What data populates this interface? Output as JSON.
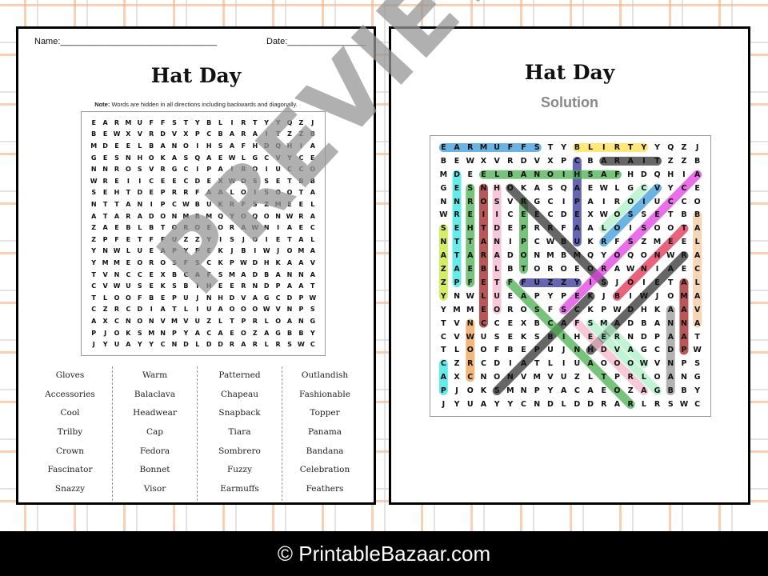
{
  "worksheet": {
    "name_label": "Name:________________________________",
    "date_label": "Date:________________",
    "title": "Hat Day",
    "note_bold": "Note:",
    "note_text": " Words are hidden in all directions including backwards and diagonally."
  },
  "solution": {
    "title": "Hat Day",
    "subtitle": "Solution"
  },
  "grid_rows": [
    "EARMUFFSTYBLIRTYYQZJ",
    "BEWXVRDVXPCBARAITZZB",
    "MDEELBANOIHSAFHDQHIA",
    "GESNHOKASQAEWLGCVYCE",
    "NNROSVRGCIPAIROIUCCO",
    "WREIICEECDEXWOSSETBB",
    "SEHTDEPRRFAALOISOOTA",
    "NTTANIPCWBUKRFSZMEEL",
    "ATARADONMBMQYOQONWRA",
    "ZAEBLBTOROEORAWNIAEC",
    "ZPFETFFUZZYISJOIETAL",
    "YNWLUEAPYPEKJBIWJOMA",
    "YMMEOROSFSCKPWDHKAAV",
    "TVNCCEXBCAFSMADBANNA",
    "CVWUSEKSBIHEERNDPAAT",
    "TLOOFBEPUJNHDVAGCDPW",
    "CZRCDIATLIUAOOOWVNPS",
    "AXCNONVMVUZLTPRLOANG",
    "PJOKSMNPYACAEOZAGBBY",
    "JYUAYYCNDLDDRARLRSWC"
  ],
  "word_columns": [
    [
      "Gloves",
      "Accessories",
      "Cool",
      "Trilby",
      "Crown",
      "Fascinator",
      "Snazzy"
    ],
    [
      "Warm",
      "Balaclava",
      "Headwear",
      "Cap",
      "Fedora",
      "Bonnet",
      "Visor"
    ],
    [
      "Patterned",
      "Chapeau",
      "Snapback",
      "Tiara",
      "Sombrero",
      "Fuzzy",
      "Earmuffs"
    ],
    [
      "Outlandish",
      "Fashionable",
      "Topper",
      "Panama",
      "Bandana",
      "Celebration",
      "Feathers"
    ]
  ],
  "solution_highlights": [
    {
      "word": "Earmuffs",
      "from": [
        0,
        0
      ],
      "to": [
        0,
        7
      ],
      "color": "#3a9ad9"
    },
    {
      "word": "Trilby",
      "from": [
        0,
        10
      ],
      "to": [
        0,
        15
      ],
      "color": "#ffe14d"
    },
    {
      "word": "Chapeau",
      "from": [
        1,
        10
      ],
      "to": [
        7,
        10
      ],
      "color": "#333399"
    },
    {
      "word": "Tiara",
      "from": [
        1,
        12
      ],
      "to": [
        1,
        16
      ],
      "color": "#333333"
    },
    {
      "word": "Fashionable",
      "from": [
        2,
        3
      ],
      "to": [
        2,
        13
      ],
      "color": "#4caf50"
    },
    {
      "word": "Patterned",
      "from": [
        2,
        1
      ],
      "to": [
        10,
        1
      ],
      "color": "#33e5e5"
    },
    {
      "word": "Feathers",
      "from": [
        3,
        2
      ],
      "to": [
        10,
        2
      ],
      "color": "#4caf50"
    },
    {
      "word": "Celebration",
      "from": [
        3,
        3
      ],
      "to": [
        13,
        3
      ],
      "color": "#a02020"
    },
    {
      "word": "Outlandish",
      "from": [
        3,
        4
      ],
      "to": [
        12,
        4
      ],
      "color": "#f5b8cc"
    },
    {
      "word": "Snazzy",
      "from": [
        6,
        0
      ],
      "to": [
        11,
        0
      ],
      "color": "#c8e632"
    },
    {
      "word": "Topper",
      "from": [
        4,
        6
      ],
      "to": [
        9,
        6
      ],
      "color": "#4caf50"
    },
    {
      "word": "Fuzzy",
      "from": [
        10,
        6
      ],
      "to": [
        10,
        10
      ],
      "color": "#333399"
    },
    {
      "word": "Sombrero",
      "from": [
        10,
        12
      ],
      "to": [
        3,
        5
      ],
      "color": "#333333"
    },
    {
      "word": "Accessories",
      "from": [
        2,
        19
      ],
      "to": [
        12,
        9
      ],
      "color": "#e040e0"
    },
    {
      "word": "Cool",
      "from": [
        3,
        15
      ],
      "to": [
        6,
        12
      ],
      "color": "#b0f0c8"
    },
    {
      "word": "Visor",
      "from": [
        3,
        16
      ],
      "to": [
        7,
        12
      ],
      "color": "#3a9ad9"
    },
    {
      "word": "Bonnet",
      "from": [
        11,
        13
      ],
      "to": [
        6,
        18
      ],
      "color": "#e03050"
    },
    {
      "word": "Headwear",
      "from": [
        15,
        11
      ],
      "to": [
        8,
        18
      ],
      "color": "#333333"
    },
    {
      "word": "Snapback",
      "from": [
        18,
        4
      ],
      "to": [
        11,
        11
      ],
      "color": "#333333"
    },
    {
      "word": "Fascinator",
      "from": [
        10,
        5
      ],
      "to": [
        19,
        14
      ],
      "color": "#4caf50"
    },
    {
      "word": "Fedora",
      "from": [
        13,
        10
      ],
      "to": [
        18,
        15
      ],
      "color": "#f5b8cc"
    },
    {
      "word": "Gloves",
      "from": [
        18,
        16
      ],
      "to": [
        13,
        11
      ],
      "color": "#b0f0c8"
    },
    {
      "word": "Warm",
      "from": [
        16,
        15
      ],
      "to": [
        13,
        12
      ],
      "color": "#b0f0c8"
    },
    {
      "word": "Crown",
      "from": [
        17,
        2
      ],
      "to": [
        13,
        2
      ],
      "color": "#f0a050"
    },
    {
      "word": "Cap",
      "from": [
        16,
        0
      ],
      "to": [
        18,
        0
      ],
      "color": "#33e5e5"
    },
    {
      "word": "Bandana",
      "from": [
        18,
        17
      ],
      "to": [
        12,
        17
      ],
      "color": "#999999"
    },
    {
      "word": "Panama",
      "from": [
        15,
        18
      ],
      "to": [
        10,
        18
      ],
      "color": "#a02020"
    },
    {
      "word": "Balaclava",
      "from": [
        5,
        19
      ],
      "to": [
        13,
        19
      ],
      "color": "#f5c8a0"
    }
  ],
  "watermark": "PREVIEW",
  "footer": "© PrintableBazaar.com"
}
